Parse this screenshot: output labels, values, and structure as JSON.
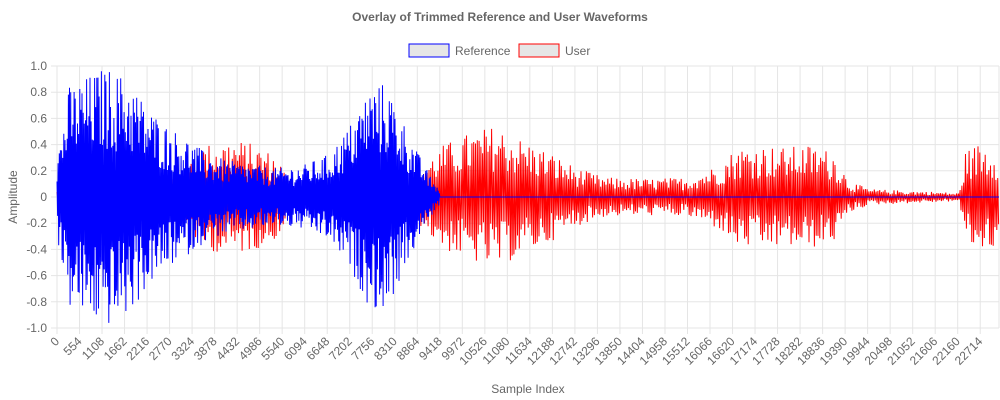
{
  "chart_data": {
    "type": "line",
    "title": "Overlay of Trimmed Reference and User Waveforms",
    "xlabel": "Sample Index",
    "ylabel": "Amplitude",
    "ylim": [
      -1.0,
      1.0
    ],
    "xlim": [
      0,
      23176
    ],
    "grid": true,
    "legend_position": "top-center",
    "y_ticks": [
      "1.0",
      "0.8",
      "0.6",
      "0.4",
      "0.2",
      "0",
      "-0.2",
      "-0.4",
      "-0.6",
      "-0.8",
      "-1.0"
    ],
    "x_ticks": [
      "0",
      "554",
      "1108",
      "1662",
      "2216",
      "2770",
      "3324",
      "3878",
      "4432",
      "4986",
      "5540",
      "6094",
      "6648",
      "7202",
      "7756",
      "8310",
      "8864",
      "9418",
      "9972",
      "10526",
      "11080",
      "11634",
      "12188",
      "12742",
      "13296",
      "13850",
      "14404",
      "14958",
      "15512",
      "16066",
      "16620",
      "17174",
      "17728",
      "18282",
      "18836",
      "19390",
      "19944",
      "20498",
      "21052",
      "21606",
      "22160",
      "22714"
    ],
    "series": [
      {
        "name": "Reference",
        "color": "#0000ff",
        "fill": "#e6e6e6",
        "length": 9418,
        "envelope": [
          [
            0,
            0.3
          ],
          [
            300,
            0.85
          ],
          [
            600,
            0.9
          ],
          [
            900,
            0.95
          ],
          [
            1200,
            1.0
          ],
          [
            1500,
            0.95
          ],
          [
            1800,
            0.9
          ],
          [
            2200,
            0.7
          ],
          [
            2700,
            0.55
          ],
          [
            3200,
            0.45
          ],
          [
            3700,
            0.33
          ],
          [
            4200,
            0.28
          ],
          [
            4800,
            0.25
          ],
          [
            5400,
            0.22
          ],
          [
            6100,
            0.25
          ],
          [
            6700,
            0.33
          ],
          [
            7200,
            0.55
          ],
          [
            7700,
            0.85
          ],
          [
            8100,
            0.88
          ],
          [
            8500,
            0.6
          ],
          [
            8864,
            0.35
          ],
          [
            9200,
            0.15
          ],
          [
            9418,
            0.06
          ]
        ]
      },
      {
        "name": "User",
        "color": "#ff0000",
        "fill": "#e6e6e6",
        "length": 23176,
        "envelope": [
          [
            0,
            0.05
          ],
          [
            1500,
            0.12
          ],
          [
            3000,
            0.18
          ],
          [
            3600,
            0.4
          ],
          [
            4300,
            0.45
          ],
          [
            4900,
            0.4
          ],
          [
            5400,
            0.32
          ],
          [
            5800,
            0.1
          ],
          [
            6500,
            0.05
          ],
          [
            7500,
            0.03
          ],
          [
            8600,
            0.05
          ],
          [
            9000,
            0.25
          ],
          [
            9500,
            0.4
          ],
          [
            10200,
            0.5
          ],
          [
            10800,
            0.55
          ],
          [
            11400,
            0.45
          ],
          [
            12100,
            0.35
          ],
          [
            12800,
            0.22
          ],
          [
            13500,
            0.15
          ],
          [
            14500,
            0.14
          ],
          [
            15500,
            0.15
          ],
          [
            16300,
            0.25
          ],
          [
            16700,
            0.38
          ],
          [
            17300,
            0.4
          ],
          [
            17900,
            0.38
          ],
          [
            18500,
            0.4
          ],
          [
            19100,
            0.35
          ],
          [
            19500,
            0.12
          ],
          [
            20000,
            0.06
          ],
          [
            20800,
            0.05
          ],
          [
            21600,
            0.04
          ],
          [
            22200,
            0.03
          ],
          [
            22350,
            0.35
          ],
          [
            22700,
            0.42
          ],
          [
            23000,
            0.4
          ],
          [
            23176,
            0.35
          ]
        ]
      }
    ]
  }
}
